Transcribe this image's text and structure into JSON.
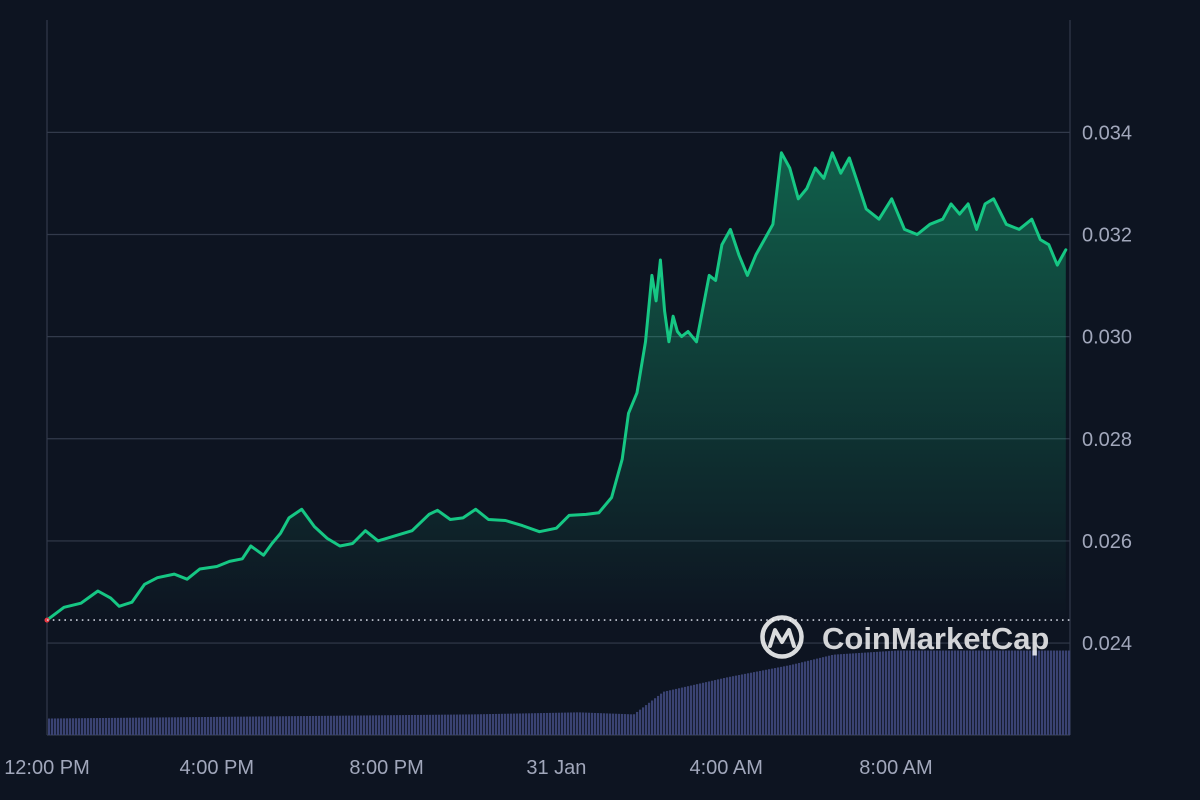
{
  "watermark": {
    "text": "CoinMarketCap"
  },
  "colors": {
    "background": "#0d1421",
    "line": "#16c784",
    "gridline": "#323a4b",
    "axis": "#323a4b",
    "baseline_dots": "#c9ced9",
    "volume": "#3a4373",
    "tick_text": "#a1a7bb"
  },
  "chart_data": {
    "type": "line",
    "title": "",
    "xlabel": "",
    "ylabel": "",
    "ylim": [
      0.0222,
      0.0362
    ],
    "y_ticks": [
      "0.024",
      "0.026",
      "0.028",
      "0.030",
      "0.032",
      "0.034"
    ],
    "y_tick_values": [
      0.024,
      0.026,
      0.028,
      0.03,
      0.032,
      0.034
    ],
    "x_ticks": [
      "12:00 PM",
      "4:00 PM",
      "8:00 PM",
      "31 Jan",
      "4:00 AM",
      "8:00 AM"
    ],
    "x_tick_hours": [
      0,
      4,
      8,
      12,
      16,
      20
    ],
    "x_range_hours": [
      0,
      24.1
    ],
    "baseline_value": 0.02445,
    "grid": true,
    "legend": "none",
    "series": [
      {
        "x": [
          0,
          0.4,
          0.8,
          1.0,
          1.2,
          1.5,
          1.7,
          2.0,
          2.3,
          2.6,
          3.0,
          3.3,
          3.6,
          4.0,
          4.3,
          4.6,
          4.8,
          5.1,
          5.3,
          5.5,
          5.7,
          6.0,
          6.3,
          6.6,
          6.9,
          7.2,
          7.5,
          7.8,
          8.2,
          8.6,
          9.0,
          9.2,
          9.5,
          9.8,
          10.1,
          10.4,
          10.8,
          11.2,
          11.6,
          12.0,
          12.3,
          12.7,
          13.0,
          13.3,
          13.55,
          13.7,
          13.9,
          14.1,
          14.25,
          14.35,
          14.45,
          14.55,
          14.65,
          14.75,
          14.85,
          14.95,
          15.1,
          15.3,
          15.6,
          15.75,
          15.9,
          16.1,
          16.3,
          16.5,
          16.7,
          16.9,
          17.1,
          17.3,
          17.5,
          17.7,
          17.9,
          18.1,
          18.3,
          18.5,
          18.7,
          18.9,
          19.1,
          19.3,
          19.6,
          19.9,
          20.2,
          20.5,
          20.8,
          21.1,
          21.3,
          21.5,
          21.7,
          21.9,
          22.1,
          22.3,
          22.6,
          22.9,
          23.2,
          23.4,
          23.6,
          23.8,
          24.0
        ],
        "y": [
          0.02445,
          0.0247,
          0.02478,
          0.0249,
          0.02502,
          0.02488,
          0.02472,
          0.0248,
          0.02515,
          0.02528,
          0.02535,
          0.02525,
          0.02545,
          0.0255,
          0.0256,
          0.02565,
          0.0259,
          0.02572,
          0.02595,
          0.02615,
          0.02645,
          0.02662,
          0.02628,
          0.02605,
          0.0259,
          0.02595,
          0.0262,
          0.026,
          0.0261,
          0.0262,
          0.02652,
          0.0266,
          0.02642,
          0.02645,
          0.02662,
          0.02642,
          0.0264,
          0.0263,
          0.02618,
          0.02625,
          0.0265,
          0.02652,
          0.02655,
          0.02685,
          0.0276,
          0.0285,
          0.0289,
          0.0299,
          0.0312,
          0.0307,
          0.0315,
          0.0305,
          0.0299,
          0.0304,
          0.0301,
          0.03,
          0.0301,
          0.0299,
          0.0312,
          0.0311,
          0.0318,
          0.0321,
          0.0316,
          0.0312,
          0.0316,
          0.0319,
          0.0322,
          0.0336,
          0.0333,
          0.0327,
          0.0329,
          0.0333,
          0.0331,
          0.0336,
          0.0332,
          0.0335,
          0.033,
          0.0325,
          0.0323,
          0.0327,
          0.0321,
          0.032,
          0.0322,
          0.0323,
          0.0326,
          0.0324,
          0.0326,
          0.0321,
          0.0326,
          0.0327,
          0.0322,
          0.0321,
          0.0323,
          0.0319,
          0.0318,
          0.0314,
          0.0317
        ]
      }
    ],
    "volume_series": {
      "x": [
        0,
        5,
        10,
        12.5,
        13.8,
        14.5,
        16,
        17.5,
        18.5,
        20,
        24
      ],
      "level": [
        0.16,
        0.18,
        0.2,
        0.22,
        0.2,
        0.42,
        0.56,
        0.68,
        0.78,
        0.82,
        0.82
      ]
    }
  }
}
